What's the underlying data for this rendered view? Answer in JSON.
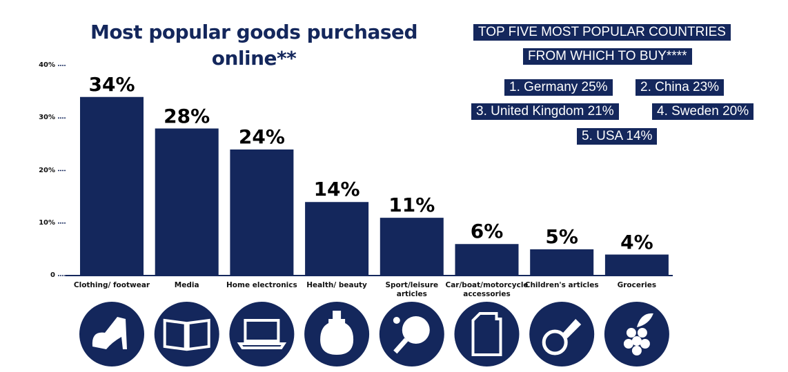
{
  "chart_data": {
    "type": "bar",
    "title": "Most popular goods purchased online**",
    "categories": [
      "Clothing/ footwear",
      "Media",
      "Home electronics",
      "Health/ beauty",
      "Sport/leisure articles",
      "Car/boat/motorcycle accessories",
      "Children's articles",
      "Groceries"
    ],
    "values": [
      34,
      28,
      24,
      14,
      11,
      6,
      5,
      4
    ],
    "value_labels": [
      "34%",
      "28%",
      "24%",
      "14%",
      "11%",
      "6%",
      "5%",
      "4%"
    ],
    "color": "#14275c",
    "ylim": [
      0,
      40
    ],
    "yticks": [
      {
        "value": 0,
        "label": "0"
      },
      {
        "value": 10,
        "label": "10%"
      },
      {
        "value": 20,
        "label": "20%"
      },
      {
        "value": 30,
        "label": "30%"
      },
      {
        "value": 40,
        "label": "40%"
      }
    ],
    "annotations": [
      "TOP FIVE MOST POPULAR COUNTRIES",
      "FROM WHICH TO BUY****",
      "1. Germany 25%",
      "2. China 23%",
      "3. United Kingdom 21%",
      "4. Sweden 20%",
      "5. USA 14%"
    ]
  }
}
